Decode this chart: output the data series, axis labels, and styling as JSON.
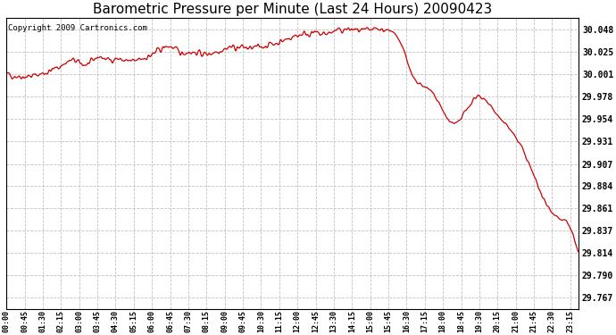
{
  "title": "Barometric Pressure per Minute (Last 24 Hours) 20090423",
  "copyright": "Copyright 2009 Cartronics.com",
  "line_color": "#cc0000",
  "background_color": "#ffffff",
  "grid_color": "#c0c0c0",
  "title_fontsize": 11,
  "copyright_fontsize": 6.5,
  "ytick_labels": [
    29.767,
    29.79,
    29.814,
    29.837,
    29.861,
    29.884,
    29.907,
    29.931,
    29.954,
    29.978,
    30.001,
    30.025,
    30.048
  ],
  "xtick_labels": [
    "00:00",
    "00:45",
    "01:30",
    "02:15",
    "03:00",
    "03:45",
    "04:30",
    "05:15",
    "06:00",
    "06:45",
    "07:30",
    "08:15",
    "09:00",
    "09:45",
    "10:30",
    "11:15",
    "12:00",
    "12:45",
    "13:30",
    "14:15",
    "15:00",
    "15:45",
    "16:30",
    "17:15",
    "18:00",
    "18:45",
    "19:30",
    "20:15",
    "21:00",
    "21:45",
    "22:30",
    "23:15"
  ],
  "ylim_min": 29.755,
  "ylim_max": 30.06,
  "anchors_t": [
    0,
    30,
    60,
    90,
    105,
    120,
    135,
    150,
    165,
    180,
    195,
    210,
    225,
    240,
    255,
    270,
    285,
    300,
    315,
    330,
    345,
    360,
    375,
    390,
    405,
    420,
    435,
    450,
    465,
    480,
    495,
    510,
    525,
    540,
    555,
    570,
    585,
    600,
    615,
    630,
    645,
    660,
    675,
    690,
    705,
    720,
    735,
    750,
    765,
    780,
    795,
    810,
    825,
    840,
    855,
    870,
    885,
    900,
    915,
    930,
    945,
    960,
    975,
    985,
    995,
    1005,
    1015,
    1025,
    1035,
    1045,
    1055,
    1065,
    1075,
    1080,
    1085,
    1090,
    1095,
    1100,
    1105,
    1110,
    1115,
    1120,
    1125,
    1130,
    1140,
    1155,
    1170,
    1185,
    1200,
    1215,
    1230,
    1245,
    1260,
    1275,
    1290,
    1305,
    1320,
    1335,
    1350,
    1365,
    1375,
    1385,
    1390,
    1395,
    1400,
    1405,
    1410,
    1415
  ],
  "anchors_p": [
    30.001,
    29.999,
    29.999,
    30.002,
    30.004,
    30.007,
    30.01,
    30.014,
    30.016,
    30.013,
    30.011,
    30.013,
    30.02,
    30.018,
    30.016,
    30.018,
    30.016,
    30.015,
    30.014,
    30.017,
    30.019,
    30.021,
    30.026,
    30.029,
    30.031,
    30.026,
    30.023,
    30.025,
    30.024,
    30.023,
    30.022,
    30.024,
    30.026,
    30.028,
    30.03,
    30.029,
    30.03,
    30.028,
    30.029,
    30.03,
    30.032,
    30.033,
    30.035,
    30.037,
    30.04,
    30.042,
    30.044,
    30.044,
    30.044,
    30.043,
    30.044,
    30.046,
    30.047,
    30.048,
    30.048,
    30.047,
    30.046,
    30.047,
    30.048,
    30.048,
    30.048,
    30.044,
    30.035,
    30.025,
    30.01,
    29.998,
    29.992,
    29.99,
    29.988,
    29.985,
    29.982,
    29.975,
    29.968,
    29.962,
    29.958,
    29.955,
    29.952,
    29.951,
    29.95,
    29.949,
    29.95,
    29.951,
    29.954,
    29.96,
    29.964,
    29.975,
    29.978,
    29.975,
    29.967,
    29.958,
    29.95,
    29.945,
    29.935,
    29.925,
    29.91,
    29.895,
    29.879,
    29.865,
    29.857,
    29.851,
    29.848,
    29.847,
    29.843,
    29.84,
    29.836,
    29.828,
    29.82,
    29.812
  ]
}
